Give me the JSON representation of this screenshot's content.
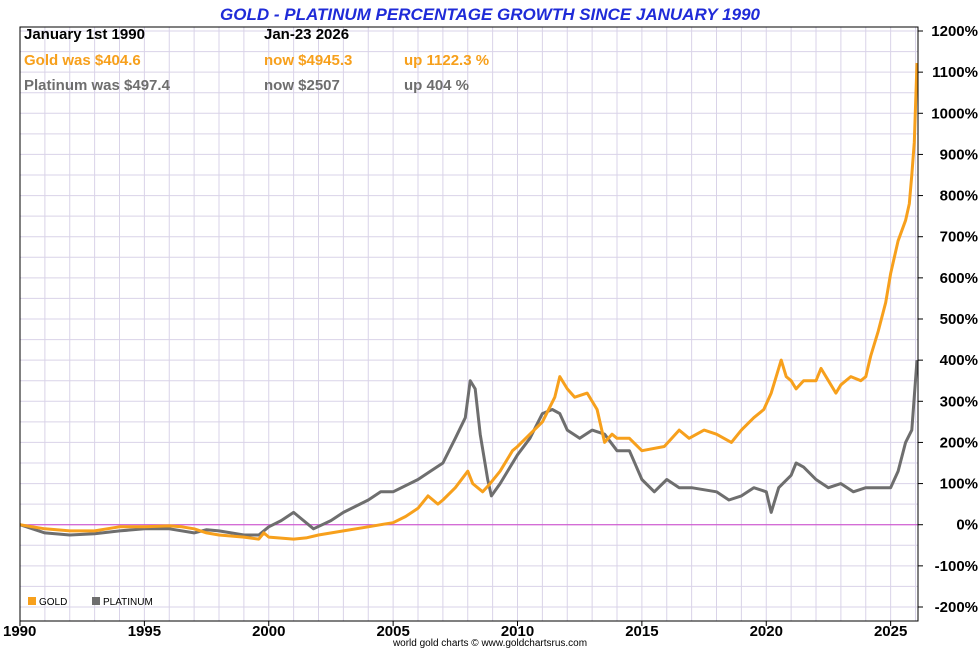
{
  "chart_data": {
    "type": "line",
    "title": "GOLD - PLATINUM PERCENTAGE GROWTH SINCE JANUARY 1990",
    "xlabel": "",
    "ylabel": "",
    "xlim": [
      1990,
      2026.1
    ],
    "ylim": [
      -200,
      1200
    ],
    "y_ticks": [
      1200,
      1100,
      1000,
      900,
      800,
      700,
      600,
      500,
      400,
      300,
      200,
      100,
      0,
      -100,
      -200
    ],
    "y_tick_labels": [
      "1200%",
      "1100%",
      "1000%",
      "900%",
      "800%",
      "700%",
      "600%",
      "500%",
      "400%",
      "300%",
      "200%",
      "100%",
      "0%",
      "-100%",
      "-200%"
    ],
    "x_ticks": [
      1990,
      1995,
      2000,
      2005,
      2010,
      2015,
      2020,
      2025
    ],
    "x_tick_labels": [
      "1990",
      "1995",
      "2000",
      "2005",
      "2010",
      "2015",
      "2020",
      "2025"
    ],
    "grid": true,
    "legend_position": "bottom-left",
    "info": {
      "start_label": "January 1st 1990",
      "end_label": "Jan-23  2026",
      "gold_was": "Gold was $404.6",
      "gold_now": "now $4945.3",
      "gold_up": "up 1122.3 %",
      "platinum_was": "Platinum was $497.4",
      "platinum_now": "now $2507",
      "platinum_up": "up 404 %"
    },
    "credit": "world gold charts © www.goldchartsrus.com",
    "colors": {
      "gold": "#f7a01c",
      "platinum": "#6e6e6e",
      "zero_line": "#cc44cc",
      "title": "#1f2bd8",
      "grid": "#d9d3e8"
    },
    "series": [
      {
        "name": "GOLD",
        "color": "#f7a01c",
        "x": [
          1990.0,
          1990.5,
          1991.0,
          1992.0,
          1993.0,
          1993.5,
          1994.0,
          1995.0,
          1996.0,
          1996.5,
          1997.0,
          1997.5,
          1998.0,
          1999.0,
          1999.6,
          1999.8,
          2000.0,
          2001.0,
          2001.5,
          2002.0,
          2003.0,
          2004.0,
          2004.5,
          2005.0,
          2005.5,
          2006.0,
          2006.4,
          2006.8,
          2007.0,
          2007.5,
          2008.0,
          2008.2,
          2008.6,
          2008.9,
          2009.3,
          2009.8,
          2010.0,
          2010.5,
          2011.0,
          2011.5,
          2011.7,
          2012.0,
          2012.3,
          2012.8,
          2013.2,
          2013.5,
          2013.8,
          2014.0,
          2014.5,
          2015.0,
          2015.9,
          2016.5,
          2016.9,
          2017.5,
          2018.0,
          2018.6,
          2019.0,
          2019.5,
          2019.9,
          2020.2,
          2020.6,
          2020.8,
          2021.0,
          2021.2,
          2021.5,
          2022.0,
          2022.2,
          2022.8,
          2023.0,
          2023.4,
          2023.8,
          2024.0,
          2024.2,
          2024.5,
          2024.8,
          2025.0,
          2025.3,
          2025.6,
          2025.75,
          2025.85,
          2025.95,
          2026.06
        ],
        "values": [
          0,
          -5,
          -10,
          -15,
          -15,
          -10,
          -5,
          -5,
          -3,
          -5,
          -10,
          -20,
          -25,
          -30,
          -35,
          -20,
          -30,
          -35,
          -32,
          -25,
          -15,
          -5,
          0,
          5,
          20,
          40,
          70,
          50,
          60,
          90,
          130,
          100,
          80,
          100,
          130,
          180,
          190,
          220,
          250,
          310,
          360,
          330,
          310,
          320,
          280,
          200,
          220,
          210,
          210,
          180,
          190,
          230,
          210,
          230,
          220,
          200,
          230,
          260,
          280,
          320,
          400,
          360,
          350,
          330,
          350,
          350,
          380,
          320,
          340,
          360,
          350,
          360,
          410,
          470,
          540,
          610,
          690,
          740,
          780,
          850,
          930,
          1122
        ]
      },
      {
        "name": "PLATINUM",
        "color": "#6e6e6e",
        "x": [
          1990.0,
          1991.0,
          1992.0,
          1993.0,
          1994.0,
          1995.0,
          1996.0,
          1997.0,
          1997.5,
          1998.0,
          1999.0,
          1999.6,
          2000.0,
          2000.5,
          2001.0,
          2001.4,
          2001.8,
          2002.5,
          2003.0,
          2004.0,
          2004.5,
          2005.0,
          2006.0,
          2006.5,
          2007.0,
          2007.5,
          2007.9,
          2008.1,
          2008.3,
          2008.5,
          2008.8,
          2008.95,
          2009.3,
          2010.0,
          2010.5,
          2011.0,
          2011.4,
          2011.7,
          2012.0,
          2012.5,
          2013.0,
          2013.5,
          2014.0,
          2014.5,
          2015.0,
          2015.5,
          2016.0,
          2016.5,
          2017.0,
          2018.0,
          2018.5,
          2019.0,
          2019.5,
          2020.0,
          2020.2,
          2020.5,
          2021.0,
          2021.2,
          2021.5,
          2022.0,
          2022.5,
          2023.0,
          2023.5,
          2024.0,
          2024.5,
          2025.0,
          2025.3,
          2025.6,
          2025.85,
          2026.06
        ],
        "values": [
          0,
          -20,
          -25,
          -22,
          -15,
          -10,
          -10,
          -20,
          -12,
          -15,
          -25,
          -25,
          -5,
          10,
          30,
          10,
          -10,
          10,
          30,
          60,
          80,
          80,
          110,
          130,
          150,
          210,
          260,
          350,
          330,
          220,
          110,
          70,
          100,
          170,
          210,
          270,
          280,
          270,
          230,
          210,
          230,
          220,
          180,
          180,
          110,
          80,
          110,
          90,
          90,
          80,
          60,
          70,
          90,
          80,
          30,
          90,
          120,
          150,
          140,
          110,
          90,
          100,
          80,
          90,
          90,
          90,
          130,
          200,
          230,
          400
        ]
      }
    ]
  }
}
